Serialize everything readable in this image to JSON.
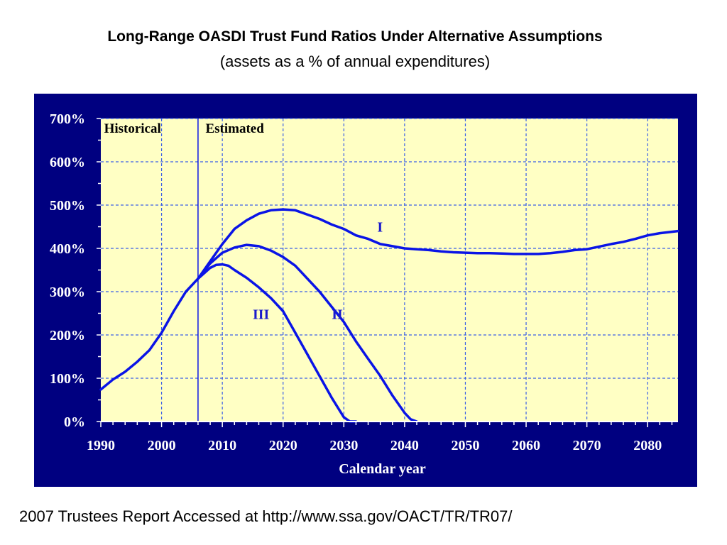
{
  "slide": {
    "title": "Long-Range OASDI Trust Fund Ratios Under Alternative Assumptions",
    "subtitle": "(assets as a % of annual expenditures)",
    "footer": "2007 Trustees Report  Accessed at http://www.ssa.gov/OACT/TR/TR07/"
  },
  "colors": {
    "panel": "#000080",
    "plot_bg": "#ffffc4",
    "grid": "#3a5fe6",
    "line": "#0a14e6",
    "axis_text": "#ffffff",
    "region_text": "#000000",
    "series_label": "#1a1acc"
  },
  "chart_data": {
    "type": "line",
    "title": "",
    "xlabel": "Calendar year",
    "ylabel": "",
    "xlim": [
      1990,
      2085
    ],
    "ylim": [
      0,
      700
    ],
    "x_ticks": [
      1990,
      2000,
      2010,
      2020,
      2030,
      2040,
      2050,
      2060,
      2070,
      2080
    ],
    "y_ticks": [
      0,
      100,
      200,
      300,
      400,
      500,
      600,
      700
    ],
    "y_tick_labels": [
      "0%",
      "100%",
      "200%",
      "300%",
      "400%",
      "500%",
      "600%",
      "700%"
    ],
    "grid": true,
    "divider_x": 2006,
    "region_labels": [
      {
        "text": "Historical",
        "x": 1990.3
      },
      {
        "text": "Estimated",
        "x": 2007
      }
    ],
    "series": [
      {
        "name": "I",
        "label_at": [
          2035.5,
          450
        ],
        "x": [
          1990,
          1992,
          1994,
          1996,
          1998,
          2000,
          2002,
          2004,
          2006,
          2008,
          2010,
          2012,
          2014,
          2016,
          2018,
          2020,
          2022,
          2024,
          2026,
          2028,
          2030,
          2032,
          2034,
          2036,
          2038,
          2040,
          2042,
          2044,
          2046,
          2048,
          2050,
          2052,
          2054,
          2056,
          2058,
          2060,
          2062,
          2064,
          2066,
          2068,
          2070,
          2072,
          2074,
          2076,
          2078,
          2080,
          2082,
          2085
        ],
        "y": [
          74,
          97,
          115,
          138,
          165,
          205,
          255,
          300,
          330,
          370,
          410,
          445,
          465,
          480,
          488,
          490,
          488,
          478,
          468,
          455,
          445,
          430,
          422,
          410,
          405,
          400,
          398,
          396,
          393,
          391,
          390,
          389,
          389,
          388,
          387,
          387,
          387,
          389,
          392,
          396,
          398,
          404,
          410,
          415,
          422,
          430,
          435,
          440
        ]
      },
      {
        "name": "II",
        "label_at": [
          2028,
          248
        ],
        "x": [
          2006,
          2008,
          2010,
          2012,
          2014,
          2016,
          2018,
          2020,
          2022,
          2024,
          2026,
          2028,
          2030,
          2032,
          2034,
          2036,
          2038,
          2040,
          2041,
          2042
        ],
        "y": [
          330,
          365,
          390,
          402,
          408,
          405,
          395,
          380,
          360,
          330,
          300,
          265,
          230,
          185,
          145,
          105,
          60,
          20,
          5,
          0
        ]
      },
      {
        "name": "III",
        "label_at": [
          2015,
          248
        ],
        "x": [
          2006,
          2008,
          2009,
          2010,
          2011,
          2012,
          2014,
          2016,
          2018,
          2020,
          2022,
          2024,
          2026,
          2028,
          2030,
          2031,
          2032
        ],
        "y": [
          330,
          355,
          362,
          363,
          360,
          350,
          332,
          310,
          285,
          255,
          205,
          155,
          105,
          55,
          10,
          0,
          0
        ]
      }
    ]
  }
}
